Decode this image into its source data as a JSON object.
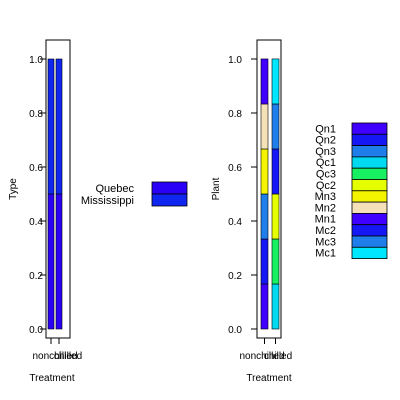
{
  "chart_data": [
    {
      "type": "bar",
      "subtype": "stacked-proportion",
      "xlabel": "Treatment",
      "ylabel": "Type",
      "categories": [
        "nonchilled",
        "chilled"
      ],
      "ylim": [
        0,
        1
      ],
      "yticks": [
        "0.0",
        "0.2",
        "0.4",
        "0.6",
        "0.8",
        "1.0"
      ],
      "series": [
        {
          "name": "Quebec",
          "color": "#2b00f7",
          "values": [
            0.5,
            0.5
          ]
        },
        {
          "name": "Mississippi",
          "color": "#0f26f0",
          "values": [
            0.5,
            0.5
          ]
        }
      ],
      "legend": {
        "position": "right",
        "entries": [
          "Quebec",
          "Mississippi"
        ]
      }
    },
    {
      "type": "bar",
      "subtype": "stacked-proportion",
      "xlabel": "Treatment",
      "ylabel": "Plant",
      "categories": [
        "nonchilled",
        "chilled"
      ],
      "ylim": [
        0,
        1
      ],
      "yticks": [
        "0.0",
        "0.2",
        "0.4",
        "0.6",
        "0.8",
        "1.0"
      ],
      "series": [
        {
          "name": "Qn1",
          "color": "#3f00ff",
          "values": [
            0.1667,
            0
          ]
        },
        {
          "name": "Qn2",
          "color": "#1517f5",
          "values": [
            0.1667,
            0
          ]
        },
        {
          "name": "Qn3",
          "color": "#1f7ee9",
          "values": [
            0.1667,
            0
          ]
        },
        {
          "name": "Qc1",
          "color": "#00d9f0",
          "values": [
            0,
            0.1667
          ]
        },
        {
          "name": "Qc3",
          "color": "#17f060",
          "values": [
            0,
            0.1667
          ]
        },
        {
          "name": "Qc2",
          "color": "#e6ff00",
          "values": [
            0,
            0.1667
          ]
        },
        {
          "name": "Mn3",
          "color": "#f4f400",
          "values": [
            0.1667,
            0
          ]
        },
        {
          "name": "Mn2",
          "color": "#f5e1b8",
          "values": [
            0.1667,
            0
          ]
        },
        {
          "name": "Mn1",
          "color": "#3f00ff",
          "values": [
            0.1667,
            0
          ]
        },
        {
          "name": "Mc2",
          "color": "#1517f5",
          "values": [
            0,
            0.1667
          ]
        },
        {
          "name": "Mc3",
          "color": "#1f7ee9",
          "values": [
            0,
            0.1667
          ]
        },
        {
          "name": "Mc1",
          "color": "#00e6ff",
          "values": [
            0,
            0.1667
          ]
        }
      ],
      "legend": {
        "position": "right",
        "entries": [
          "Qn1",
          "Qn2",
          "Qn3",
          "Qc1",
          "Qc3",
          "Qc2",
          "Mn3",
          "Mn2",
          "Mn1",
          "Mc2",
          "Mc3",
          "Mc1"
        ]
      }
    }
  ]
}
